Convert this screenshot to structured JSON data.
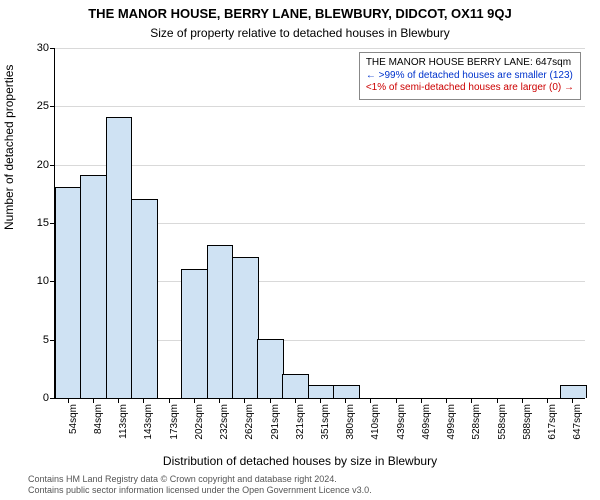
{
  "title": {
    "text": "THE MANOR HOUSE, BERRY LANE, BLEWBURY, DIDCOT, OX11 9QJ",
    "fontsize": 13
  },
  "subtitle": {
    "text": "Size of property relative to detached houses in Blewbury",
    "fontsize": 12
  },
  "ylabel": {
    "text": "Number of detached properties",
    "fontsize": 12
  },
  "xlabel": {
    "text": "Distribution of detached houses by size in Blewbury",
    "fontsize": 12
  },
  "credits": {
    "line1": "Contains HM Land Registry data © Crown copyright and database right 2024.",
    "line2": "Contains public sector information licensed under the Open Government Licence v3.0.",
    "fontsize": 9
  },
  "chart": {
    "type": "histogram",
    "background_color": "#ffffff",
    "grid_color": "#d9d9d9",
    "axis_color": "#000000",
    "bar_fill": "#cfe2f3",
    "bar_stroke": "#000000",
    "bar_width": 0.98,
    "ylim": [
      0,
      30
    ],
    "ytick_step": 5,
    "xtick_labels": [
      "54sqm",
      "84sqm",
      "113sqm",
      "143sqm",
      "173sqm",
      "202sqm",
      "232sqm",
      "262sqm",
      "291sqm",
      "321sqm",
      "351sqm",
      "380sqm",
      "410sqm",
      "439sqm",
      "469sqm",
      "499sqm",
      "528sqm",
      "558sqm",
      "588sqm",
      "617sqm",
      "647sqm"
    ],
    "xtick_fontsize": 10,
    "ytick_fontsize": 11,
    "values": [
      18,
      19,
      24,
      17,
      0,
      11,
      13,
      12,
      5,
      2,
      1,
      1,
      0,
      0,
      0,
      0,
      0,
      0,
      0,
      0,
      1
    ]
  },
  "legend": {
    "border_color": "#888888",
    "background": "#ffffff",
    "lines": [
      "THE MANOR HOUSE BERRY LANE: 647sqm",
      "← >99% of detached houses are smaller (123)",
      "<1% of semi-detached houses are larger (0) →"
    ],
    "line_colors": [
      "#000000",
      "#0033cc",
      "#cc0000"
    ],
    "fontsize": 10
  }
}
